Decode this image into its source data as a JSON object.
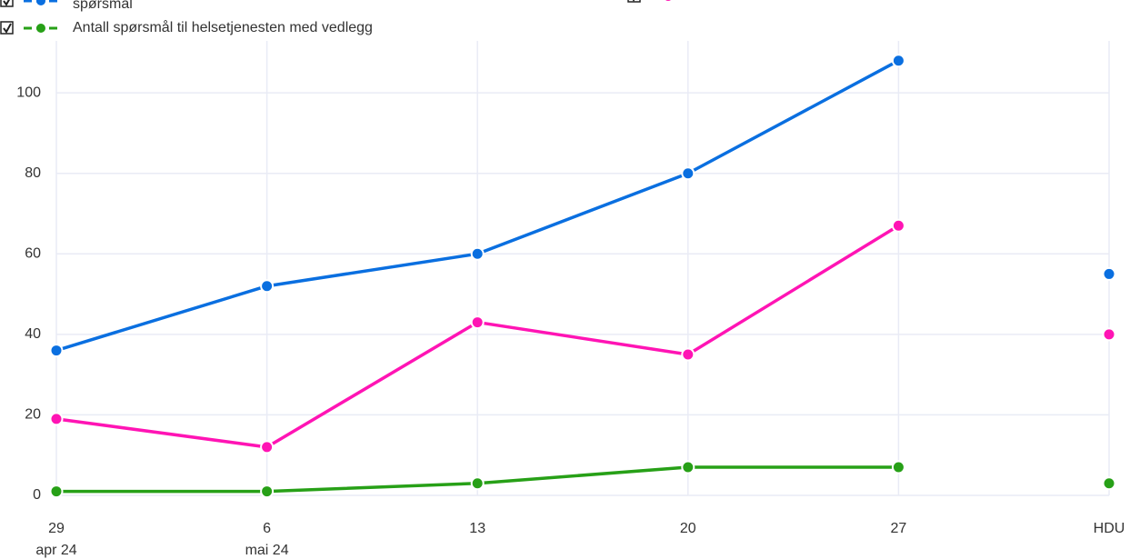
{
  "chart_data": {
    "type": "line",
    "categories": [
      "29",
      "6",
      "13",
      "20",
      "27",
      "HDU"
    ],
    "category_sublabels": [
      "apr 24",
      "mai 24",
      null,
      null,
      null,
      null
    ],
    "series": [
      {
        "name": "spørsmål",
        "color": "#0a6fe0",
        "values": [
          36,
          52,
          60,
          80,
          108,
          55
        ]
      },
      {
        "color": "#ff14b4",
        "values": [
          19,
          12,
          43,
          35,
          67,
          40
        ]
      },
      {
        "name": "Antall spørsmål til helsetjenesten med vedlegg",
        "color": "#27a017",
        "values": [
          1,
          1,
          3,
          7,
          7,
          3
        ]
      }
    ],
    "separate_last": true,
    "ylim": [
      0,
      112
    ],
    "yticks": [
      0,
      20,
      40,
      60,
      80,
      100
    ],
    "grid": true
  }
}
